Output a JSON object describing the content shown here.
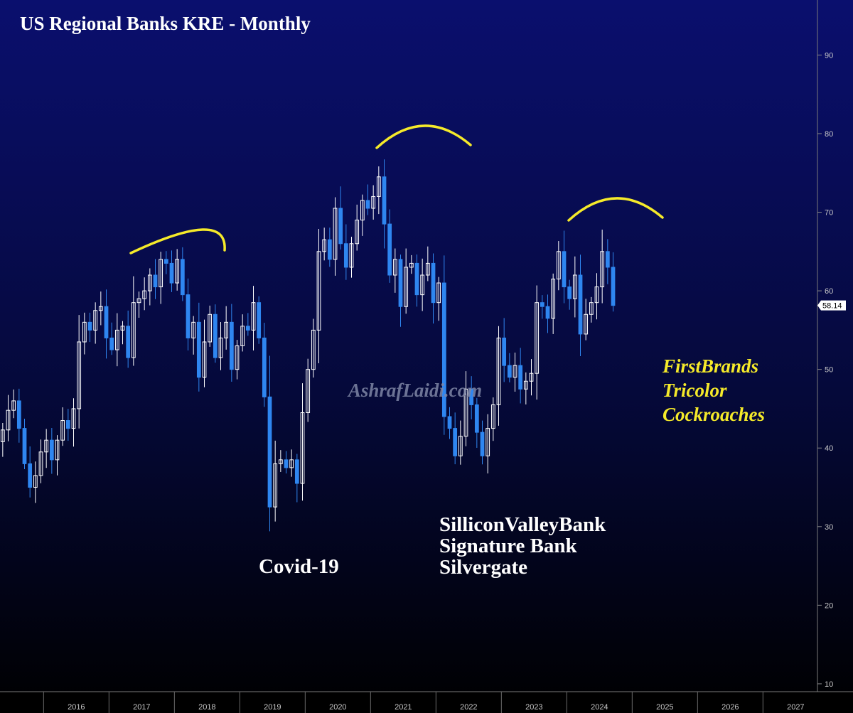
{
  "chart_data": {
    "type": "candlestick",
    "title": "US Regional Banks KRE - Monthly",
    "watermark": "AshrafLaidi.com",
    "last_price_label": "58.14",
    "y_ticks": [
      "10",
      "20",
      "30",
      "40",
      "50",
      "60",
      "70",
      "80",
      "90"
    ],
    "ylim": [
      9,
      97
    ],
    "x_ticks": [
      "2016",
      "2017",
      "2018",
      "2019",
      "2020",
      "2021",
      "2022",
      "2023",
      "2024",
      "2025",
      "2026",
      "2027"
    ],
    "xlim": [
      "2015-05",
      "2027-11"
    ],
    "colors": {
      "background_top": "#0a0f6e",
      "background_bottom": "#000000",
      "up_candle": "#ffffff",
      "down_candle": "#2f86f0",
      "arcs": "#f5ea2a",
      "annotation_yellow": "#f5ea2a",
      "annotation_white": "#ffffff",
      "axis_text": "#c9c9c9"
    },
    "annotations": [
      {
        "name": "covid",
        "lines": [
          "Covid-19"
        ],
        "color": "#ffffff",
        "italic": false
      },
      {
        "name": "banks",
        "lines": [
          "SilliconValleyBank",
          "Signature Bank",
          "Silvergate"
        ],
        "color": "#ffffff",
        "italic": false
      },
      {
        "name": "names",
        "lines": [
          "FirstBrands",
          "Tricolor",
          "Cockroaches"
        ],
        "color": "#f5ea2a",
        "italic": true
      }
    ],
    "close_series": {
      "start": "2015-05",
      "values": [
        42.3,
        44.8,
        46.0,
        42.5,
        38.0,
        35.0,
        36.5,
        39.5,
        41.0,
        38.5,
        41.0,
        43.5,
        42.5,
        45.0,
        53.5,
        56.0,
        55.0,
        57.5,
        58.0,
        54.0,
        52.5,
        55.0,
        55.5,
        51.5,
        58.5,
        59.0,
        60.0,
        62.0,
        60.5,
        64.0,
        63.5,
        61.0,
        64.0,
        59.5,
        54.0,
        56.0,
        49.0,
        53.5,
        57.0,
        51.5,
        54.0,
        56.0,
        50.0,
        53.0,
        55.5,
        55.0,
        58.5,
        54.0,
        46.5,
        32.5,
        38.0,
        38.5,
        37.5,
        38.5,
        35.5,
        44.5,
        50.0,
        55.0,
        65.0,
        66.5,
        64.0,
        70.5,
        66.0,
        63.0,
        66.0,
        69.0,
        71.5,
        70.5,
        72.0,
        74.5,
        68.5,
        62.0,
        64.0,
        58.0,
        63.0,
        63.5,
        59.5,
        62.0,
        63.5,
        58.5,
        61.0,
        44.0,
        42.5,
        39.0,
        41.5,
        47.5,
        45.5,
        42.0,
        39.0,
        42.5,
        45.5,
        54.0,
        50.5,
        49.0,
        50.5,
        47.5,
        48.5,
        49.5,
        58.5,
        58.0,
        56.5,
        61.5,
        65.0,
        60.5,
        59.0,
        62.0,
        54.5,
        57.0,
        58.5,
        60.5,
        65.0,
        63.0,
        58.14
      ]
    }
  }
}
